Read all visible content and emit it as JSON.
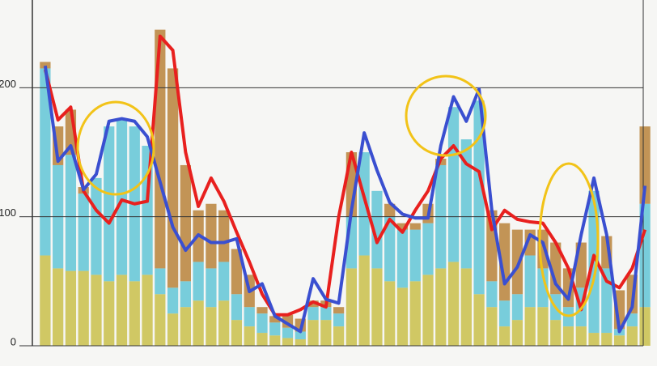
{
  "chart_data": {
    "type": "bar",
    "categories": [
      null,
      null,
      null,
      null,
      null,
      null,
      null,
      null,
      null,
      null,
      null,
      null,
      null,
      null,
      null,
      null,
      null,
      null,
      null,
      null,
      null,
      null,
      null,
      null,
      null,
      null,
      null,
      null,
      null,
      null,
      null,
      null,
      null,
      null,
      null,
      null,
      null,
      null,
      null,
      null,
      null,
      null,
      null,
      null,
      null,
      null,
      null,
      null
    ],
    "series": [
      {
        "color": "#c9c04a",
        "values": [
          70,
          60,
          58,
          58,
          55,
          50,
          55,
          50,
          55,
          40,
          25,
          30,
          35,
          30,
          35,
          20,
          15,
          10,
          8,
          6,
          5,
          20,
          20,
          15,
          60,
          70,
          60,
          50,
          45,
          50,
          55,
          60,
          65,
          60,
          40,
          30,
          15,
          20,
          30,
          30,
          20,
          15,
          15,
          10,
          10,
          8,
          15,
          30
        ]
      },
      {
        "color": "#62c6d6",
        "values": [
          145,
          80,
          90,
          60,
          75,
          120,
          120,
          120,
          100,
          20,
          20,
          20,
          30,
          30,
          30,
          20,
          15,
          15,
          10,
          8,
          6,
          10,
          10,
          10,
          40,
          80,
          60,
          50,
          45,
          40,
          40,
          80,
          120,
          100,
          150,
          20,
          20,
          20,
          40,
          30,
          20,
          15,
          30,
          110,
          50,
          5,
          10,
          80
        ]
      },
      {
        "color": "#b8823a",
        "values": [
          5,
          30,
          35,
          5,
          0,
          0,
          0,
          0,
          0,
          185,
          170,
          90,
          40,
          50,
          40,
          35,
          25,
          5,
          5,
          10,
          10,
          5,
          5,
          5,
          50,
          0,
          0,
          10,
          5,
          5,
          15,
          5,
          0,
          0,
          0,
          55,
          60,
          50,
          20,
          30,
          40,
          30,
          35,
          0,
          25,
          30,
          30,
          60
        ]
      },
      {
        "type": "line",
        "color": "#e8201e",
        "values": [
          214,
          175,
          185,
          120,
          105,
          95,
          113,
          110,
          112,
          240,
          229,
          150,
          108,
          130,
          112,
          88,
          65,
          40,
          24,
          24,
          28,
          34,
          30,
          100,
          150,
          115,
          80,
          98,
          88,
          105,
          120,
          145,
          155,
          141,
          135,
          90,
          105,
          98,
          96,
          95,
          80,
          60,
          28,
          70,
          50,
          45,
          60,
          90
        ]
      },
      {
        "type": "line",
        "color": "#3a4fd0",
        "values": [
          217,
          143,
          155,
          121,
          133,
          174,
          176,
          174,
          162,
          127,
          92,
          74,
          86,
          80,
          80,
          83,
          42,
          48,
          23,
          17,
          11,
          52,
          36,
          33,
          105,
          165,
          136,
          111,
          102,
          99,
          99,
          155,
          193,
          174,
          199,
          105,
          48,
          61,
          86,
          80,
          48,
          36,
          86,
          130,
          86,
          11,
          30,
          124
        ]
      }
    ],
    "ylim": [
      0,
      268
    ],
    "yticks": [
      0,
      100,
      200
    ],
    "grid": true
  }
}
